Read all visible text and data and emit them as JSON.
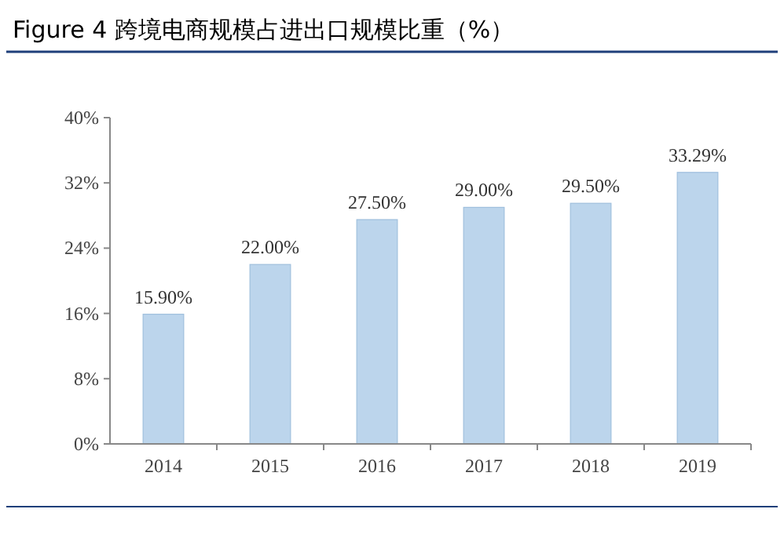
{
  "chart_data": {
    "type": "bar",
    "title": "Figure 4 跨境电商规模占进出口规模比重（%）",
    "categories": [
      "2014",
      "2015",
      "2016",
      "2017",
      "2018",
      "2019"
    ],
    "values": [
      15.9,
      22.0,
      27.5,
      29.0,
      29.5,
      33.29
    ],
    "value_labels": [
      "15.90%",
      "22.00%",
      "27.50%",
      "29.00%",
      "29.50%",
      "33.29%"
    ],
    "color": "#bcd5ec",
    "ylim": [
      0,
      40
    ],
    "yticks": [
      {
        "value": 0,
        "label": "0%"
      },
      {
        "value": 8,
        "label": "8%"
      },
      {
        "value": 16,
        "label": "16%"
      },
      {
        "value": 24,
        "label": "24%"
      },
      {
        "value": 32,
        "label": "32%"
      },
      {
        "value": 40,
        "label": "40%"
      }
    ]
  }
}
